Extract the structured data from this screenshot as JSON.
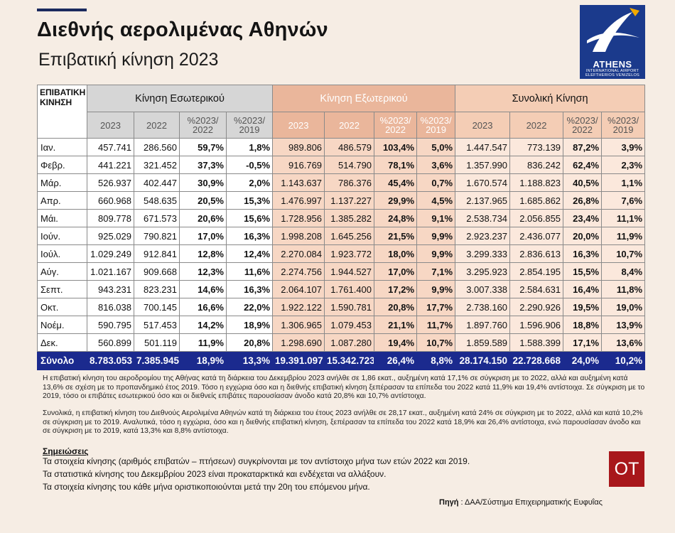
{
  "title": "Διεθνής αερολιμένας Αθηνών",
  "subtitle": "Επιβατική κίνηση 2023",
  "logo": {
    "main": "ATHENS",
    "line1": "INTERNATIONAL AIRPORT",
    "line2": "ELEFTHERIOS VENIZELOS"
  },
  "table": {
    "corner_line1": "ΕΠΙΒΑΤΙΚΗ",
    "corner_line2": "ΚΙΝΗΣΗ",
    "groups": [
      "Κίνηση Εσωτερικού",
      "Κίνηση Εξωτερικού",
      "Συνολική Κίνηση"
    ],
    "subheaders": [
      "2023",
      "2022",
      "%2023/ 2022",
      "%2023/ 2019"
    ],
    "rows": [
      {
        "month": "Ιαν.",
        "d": [
          "457.741",
          "286.560",
          "59,7%",
          "1,8%"
        ],
        "i": [
          "989.806",
          "486.579",
          "103,4%",
          "5,0%"
        ],
        "t": [
          "1.447.547",
          "773.139",
          "87,2%",
          "3,9%"
        ]
      },
      {
        "month": "Φεβρ.",
        "d": [
          "441.221",
          "321.452",
          "37,3%",
          "-0,5%"
        ],
        "i": [
          "916.769",
          "514.790",
          "78,1%",
          "3,6%"
        ],
        "t": [
          "1.357.990",
          "836.242",
          "62,4%",
          "2,3%"
        ]
      },
      {
        "month": "Μάρ.",
        "d": [
          "526.937",
          "402.447",
          "30,9%",
          "2,0%"
        ],
        "i": [
          "1.143.637",
          "786.376",
          "45,4%",
          "0,7%"
        ],
        "t": [
          "1.670.574",
          "1.188.823",
          "40,5%",
          "1,1%"
        ]
      },
      {
        "month": "Απρ.",
        "d": [
          "660.968",
          "548.635",
          "20,5%",
          "15,3%"
        ],
        "i": [
          "1.476.997",
          "1.137.227",
          "29,9%",
          "4,5%"
        ],
        "t": [
          "2.137.965",
          "1.685.862",
          "26,8%",
          "7,6%"
        ]
      },
      {
        "month": "Μάι.",
        "d": [
          "809.778",
          "671.573",
          "20,6%",
          "15,6%"
        ],
        "i": [
          "1.728.956",
          "1.385.282",
          "24,8%",
          "9,1%"
        ],
        "t": [
          "2.538.734",
          "2.056.855",
          "23,4%",
          "11,1%"
        ]
      },
      {
        "month": "Ιούν.",
        "d": [
          "925.029",
          "790.821",
          "17,0%",
          "16,3%"
        ],
        "i": [
          "1.998.208",
          "1.645.256",
          "21,5%",
          "9,9%"
        ],
        "t": [
          "2.923.237",
          "2.436.077",
          "20,0%",
          "11,9%"
        ]
      },
      {
        "month": "Ιούλ.",
        "d": [
          "1.029.249",
          "912.841",
          "12,8%",
          "12,4%"
        ],
        "i": [
          "2.270.084",
          "1.923.772",
          "18,0%",
          "9,9%"
        ],
        "t": [
          "3.299.333",
          "2.836.613",
          "16,3%",
          "10,7%"
        ]
      },
      {
        "month": "Αύγ.",
        "d": [
          "1.021.167",
          "909.668",
          "12,3%",
          "11,6%"
        ],
        "i": [
          "2.274.756",
          "1.944.527",
          "17,0%",
          "7,1%"
        ],
        "t": [
          "3.295.923",
          "2.854.195",
          "15,5%",
          "8,4%"
        ]
      },
      {
        "month": "Σεπτ.",
        "d": [
          "943.231",
          "823.231",
          "14,6%",
          "16,3%"
        ],
        "i": [
          "2.064.107",
          "1.761.400",
          "17,2%",
          "9,9%"
        ],
        "t": [
          "3.007.338",
          "2.584.631",
          "16,4%",
          "11,8%"
        ]
      },
      {
        "month": "Οκτ.",
        "d": [
          "816.038",
          "700.145",
          "16,6%",
          "22,0%"
        ],
        "i": [
          "1.922.122",
          "1.590.781",
          "20,8%",
          "17,7%"
        ],
        "t": [
          "2.738.160",
          "2.290.926",
          "19,5%",
          "19,0%"
        ]
      },
      {
        "month": "Νοέμ.",
        "d": [
          "590.795",
          "517.453",
          "14,2%",
          "18,9%"
        ],
        "i": [
          "1.306.965",
          "1.079.453",
          "21,1%",
          "11,7%"
        ],
        "t": [
          "1.897.760",
          "1.596.906",
          "18,8%",
          "13,9%"
        ]
      },
      {
        "month": "Δεκ.",
        "d": [
          "560.899",
          "501.119",
          "11,9%",
          "20,8%"
        ],
        "i": [
          "1.298.690",
          "1.087.280",
          "19,4%",
          "10,7%"
        ],
        "t": [
          "1.859.589",
          "1.588.399",
          "17,1%",
          "13,6%"
        ]
      }
    ],
    "total": {
      "month": "Σύνολο",
      "d": [
        "8.783.053",
        "7.385.945",
        "18,9%",
        "13,3%"
      ],
      "i": [
        "19.391.097",
        "15.342.723",
        "26,4%",
        "8,8%"
      ],
      "t": [
        "28.174.150",
        "22.728.668",
        "24,0%",
        "10,2%"
      ]
    }
  },
  "paragraph1": "Η επιβατική κίνηση του αεροδρομίου της Αθήνας κατά τη διάρκεια του Δεκεμβρίου 2023 ανήλθε σε 1,86 εκατ., αυξημένη κατά 17,1% σε σύγκριση με το 2022, αλλά και αυξημένη κατά 13,6% σε σχέση με το προπανδημικό έτος 2019. Τόσο η εγχώρια όσο και η διεθνής επιβατική κίνηση ξεπέρασαν τα επίπεδα του 2022 κατά 11,9% και 19,4% αντίστοιχα. Σε σύγκριση με το 2019, τόσο οι επιβάτες εσωτερικού όσο και οι διεθνείς επιβάτες παρουσίασαν άνοδο κατά 20,8% και 10,7% αντίστοιχα.",
  "paragraph2": "Συνολικά, η επιβατική κίνηση του Διεθνούς Αερολιμένα Αθηνών κατά τη διάρκεια του έτους 2023 ανήλθε σε 28,17 εκατ., αυξημένη κατά 24% σε σύγκριση με το 2022, αλλά και κατά 10,2% σε σύγκριση με το 2019. Αναλυτικά, τόσο η εγχώρια, όσο και η διεθνής επιβατική κίνηση, ξεπέρασαν τα επίπεδα του 2022 κατά 18,9% και 26,4% αντίστοιχα, ενώ παρουσίασαν άνοδο και σε σύγκριση με το 2019, κατά 13,3% και 8,8% αντίστοιχα.",
  "notes": {
    "title": "Σημειώσεις",
    "items": [
      "Τα στοιχεία κίνησης (αριθμός επιβατών – πτήσεων) συγκρίνονται με τον αντίστοιχο μήνα των ετών 2022 και 2019.",
      "Τα στατιστικά κίνησης του Δεκεμβρίου 2023 είναι προκαταρκτικά και ενδέχεται να αλλάξουν.",
      "Τα στοιχεία κίνησης του κάθε μήνα οριστικοποιούνται μετά την 20η του  επόμενου μήνα."
    ]
  },
  "source": {
    "label": "Πηγή",
    "text": " : ΔΑΑ/Σύστημα Επιχειρηματικής Ευφυΐας"
  },
  "badge": "OT",
  "colors": {
    "navy": "#1b2a8e",
    "domestic_header": "#d6d6d6",
    "international_header": "#eab69b",
    "total_header": "#f4cdb5",
    "badge": "#a8171b"
  }
}
